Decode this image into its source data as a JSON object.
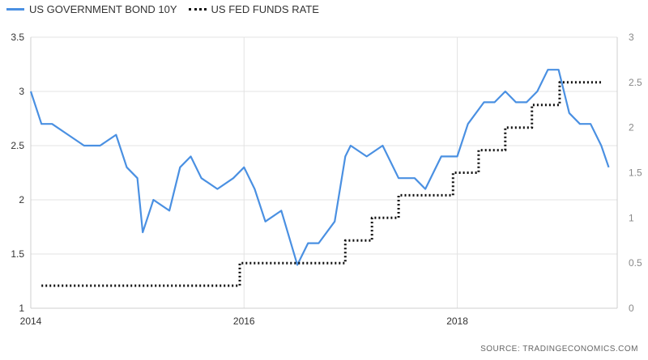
{
  "legend": {
    "series1": "US GOVERNMENT BOND 10Y",
    "series2": "US FED FUNDS RATE"
  },
  "source": "SOURCE: TRADINGECONOMICS.COM",
  "colors": {
    "bond": "#4a90e2",
    "fed": "#111111",
    "grid": "#e3e3e3"
  },
  "chart_data": {
    "type": "line",
    "x_ticks": [
      "2014",
      "2016",
      "2018"
    ],
    "y_left": {
      "ticks": [
        "1",
        "1.5",
        "2",
        "2.5",
        "3",
        "3.5"
      ],
      "range": [
        1,
        3.5
      ]
    },
    "y_right": {
      "ticks": [
        "0",
        "0.5",
        "1",
        "1.5",
        "2",
        "2.5",
        "3"
      ],
      "range": [
        0,
        3
      ]
    },
    "x_range": [
      2014.0,
      2019.5
    ],
    "grid": true,
    "legend_position": "top-left",
    "series": [
      {
        "name": "US GOVERNMENT BOND 10Y",
        "axis": "left",
        "style": "solid",
        "x": [
          2014.0,
          2014.1,
          2014.2,
          2014.35,
          2014.5,
          2014.65,
          2014.8,
          2014.9,
          2015.0,
          2015.05,
          2015.15,
          2015.3,
          2015.4,
          2015.5,
          2015.6,
          2015.75,
          2015.9,
          2016.0,
          2016.1,
          2016.2,
          2016.35,
          2016.5,
          2016.6,
          2016.7,
          2016.85,
          2016.95,
          2017.0,
          2017.15,
          2017.3,
          2017.45,
          2017.6,
          2017.7,
          2017.85,
          2018.0,
          2018.1,
          2018.25,
          2018.35,
          2018.45,
          2018.55,
          2018.65,
          2018.75,
          2018.85,
          2018.95,
          2019.05,
          2019.15,
          2019.25,
          2019.35,
          2019.42
        ],
        "values": [
          3.0,
          2.7,
          2.7,
          2.6,
          2.5,
          2.5,
          2.6,
          2.3,
          2.2,
          1.7,
          2.0,
          1.9,
          2.3,
          2.4,
          2.2,
          2.1,
          2.2,
          2.3,
          2.1,
          1.8,
          1.9,
          1.4,
          1.6,
          1.6,
          1.8,
          2.4,
          2.5,
          2.4,
          2.5,
          2.2,
          2.2,
          2.1,
          2.4,
          2.4,
          2.7,
          2.9,
          2.9,
          3.0,
          2.9,
          2.9,
          3.0,
          3.2,
          3.2,
          2.8,
          2.7,
          2.7,
          2.5,
          2.3
        ]
      },
      {
        "name": "US FED FUNDS RATE",
        "axis": "right",
        "style": "dotted",
        "x": [
          2014.1,
          2015.96,
          2015.96,
          2016.95,
          2016.95,
          2017.2,
          2017.2,
          2017.45,
          2017.45,
          2017.96,
          2017.96,
          2018.2,
          2018.2,
          2018.45,
          2018.45,
          2018.7,
          2018.7,
          2018.96,
          2018.96,
          2019.35
        ],
        "values": [
          0.25,
          0.25,
          0.5,
          0.5,
          0.75,
          0.75,
          1.0,
          1.0,
          1.25,
          1.25,
          1.5,
          1.5,
          1.75,
          1.75,
          2.0,
          2.0,
          2.25,
          2.25,
          2.5,
          2.5
        ]
      }
    ]
  }
}
